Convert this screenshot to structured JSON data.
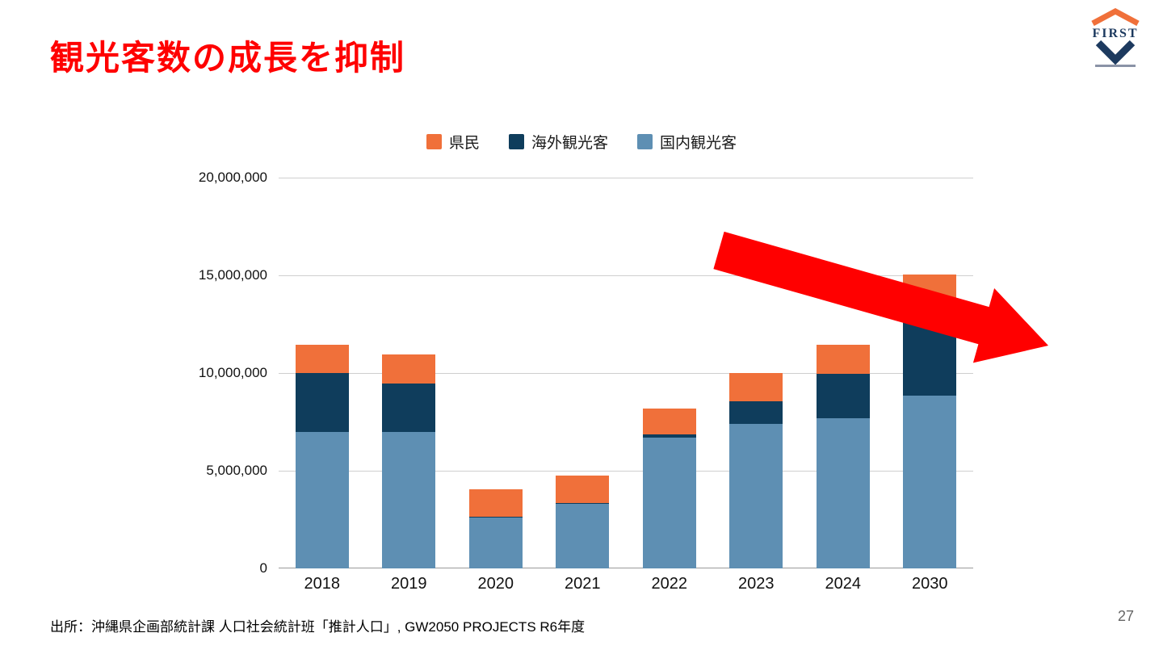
{
  "slide": {
    "title": "観光客数の成長を抑制",
    "page_number": "27",
    "source": "出所：沖縄県企画部統計課 人口社会統計班「推計人口」, GW2050 PROJECTS R6年度"
  },
  "logo": {
    "text": "FIRST"
  },
  "colors": {
    "title_red": "#ff0000",
    "arrow_red": "#ff0000",
    "kenmin_orange": "#f0703a",
    "overseas_navy": "#0f3d5c",
    "domestic_blue": "#5e8fb3",
    "logo_navy": "#1d3a5f"
  },
  "chart_data": {
    "type": "bar",
    "stacked": true,
    "title": "",
    "xlabel": "",
    "ylabel": "",
    "categories": [
      "2018",
      "2019",
      "2020",
      "2021",
      "2022",
      "2023",
      "2024",
      "2030"
    ],
    "series": [
      {
        "name": "国内観光客",
        "color": "#5e8fb3",
        "values": [
          7000000,
          7000000,
          2600000,
          3300000,
          6700000,
          7400000,
          7700000,
          8850000
        ]
      },
      {
        "name": "海外観光客",
        "color": "#0f3d5c",
        "values": [
          3000000,
          2450000,
          50000,
          50000,
          150000,
          1150000,
          2250000,
          3850000
        ]
      },
      {
        "name": "県民",
        "color": "#f0703a",
        "values": [
          1450000,
          1500000,
          1400000,
          1400000,
          1350000,
          1450000,
          1500000,
          2350000
        ]
      }
    ],
    "legend": [
      "県民",
      "海外観光客",
      "国内観光客"
    ],
    "legend_position": "top",
    "y_ticks": [
      "0",
      "5,000,000",
      "10,000,000",
      "15,000,000",
      "20,000,000"
    ],
    "ylim": [
      0,
      20000000
    ],
    "grid": true
  }
}
